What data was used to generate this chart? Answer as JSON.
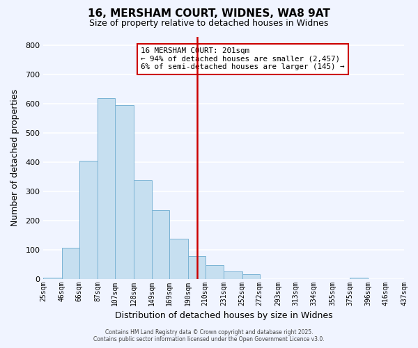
{
  "title": "16, MERSHAM COURT, WIDNES, WA8 9AT",
  "subtitle": "Size of property relative to detached houses in Widnes",
  "xlabel": "Distribution of detached houses by size in Widnes",
  "ylabel": "Number of detached properties",
  "bar_color": "#c6dff0",
  "bar_edge_color": "#7ab3d4",
  "background_color": "#f0f4ff",
  "grid_color": "#ffffff",
  "vline_x": 201,
  "vline_color": "#cc0000",
  "bin_edges": [
    25,
    46,
    66,
    87,
    107,
    128,
    149,
    169,
    190,
    210,
    231,
    252,
    272,
    293,
    313,
    334,
    355,
    375,
    396,
    416,
    437
  ],
  "bin_labels": [
    "25sqm",
    "46sqm",
    "66sqm",
    "87sqm",
    "107sqm",
    "128sqm",
    "149sqm",
    "169sqm",
    "190sqm",
    "210sqm",
    "231sqm",
    "252sqm",
    "272sqm",
    "293sqm",
    "313sqm",
    "334sqm",
    "355sqm",
    "375sqm",
    "396sqm",
    "416sqm",
    "437sqm"
  ],
  "bar_heights": [
    5,
    107,
    404,
    620,
    596,
    338,
    236,
    138,
    78,
    48,
    25,
    15,
    0,
    0,
    0,
    0,
    0,
    5,
    0,
    0
  ],
  "ylim": [
    0,
    830
  ],
  "yticks": [
    0,
    100,
    200,
    300,
    400,
    500,
    600,
    700,
    800
  ],
  "annotation_title": "16 MERSHAM COURT: 201sqm",
  "annotation_line1": "← 94% of detached houses are smaller (2,457)",
  "annotation_line2": "6% of semi-detached houses are larger (145) →",
  "annotation_box_color": "#ffffff",
  "annotation_box_edge": "#cc0000",
  "footer_line1": "Contains HM Land Registry data © Crown copyright and database right 2025.",
  "footer_line2": "Contains public sector information licensed under the Open Government Licence v3.0."
}
